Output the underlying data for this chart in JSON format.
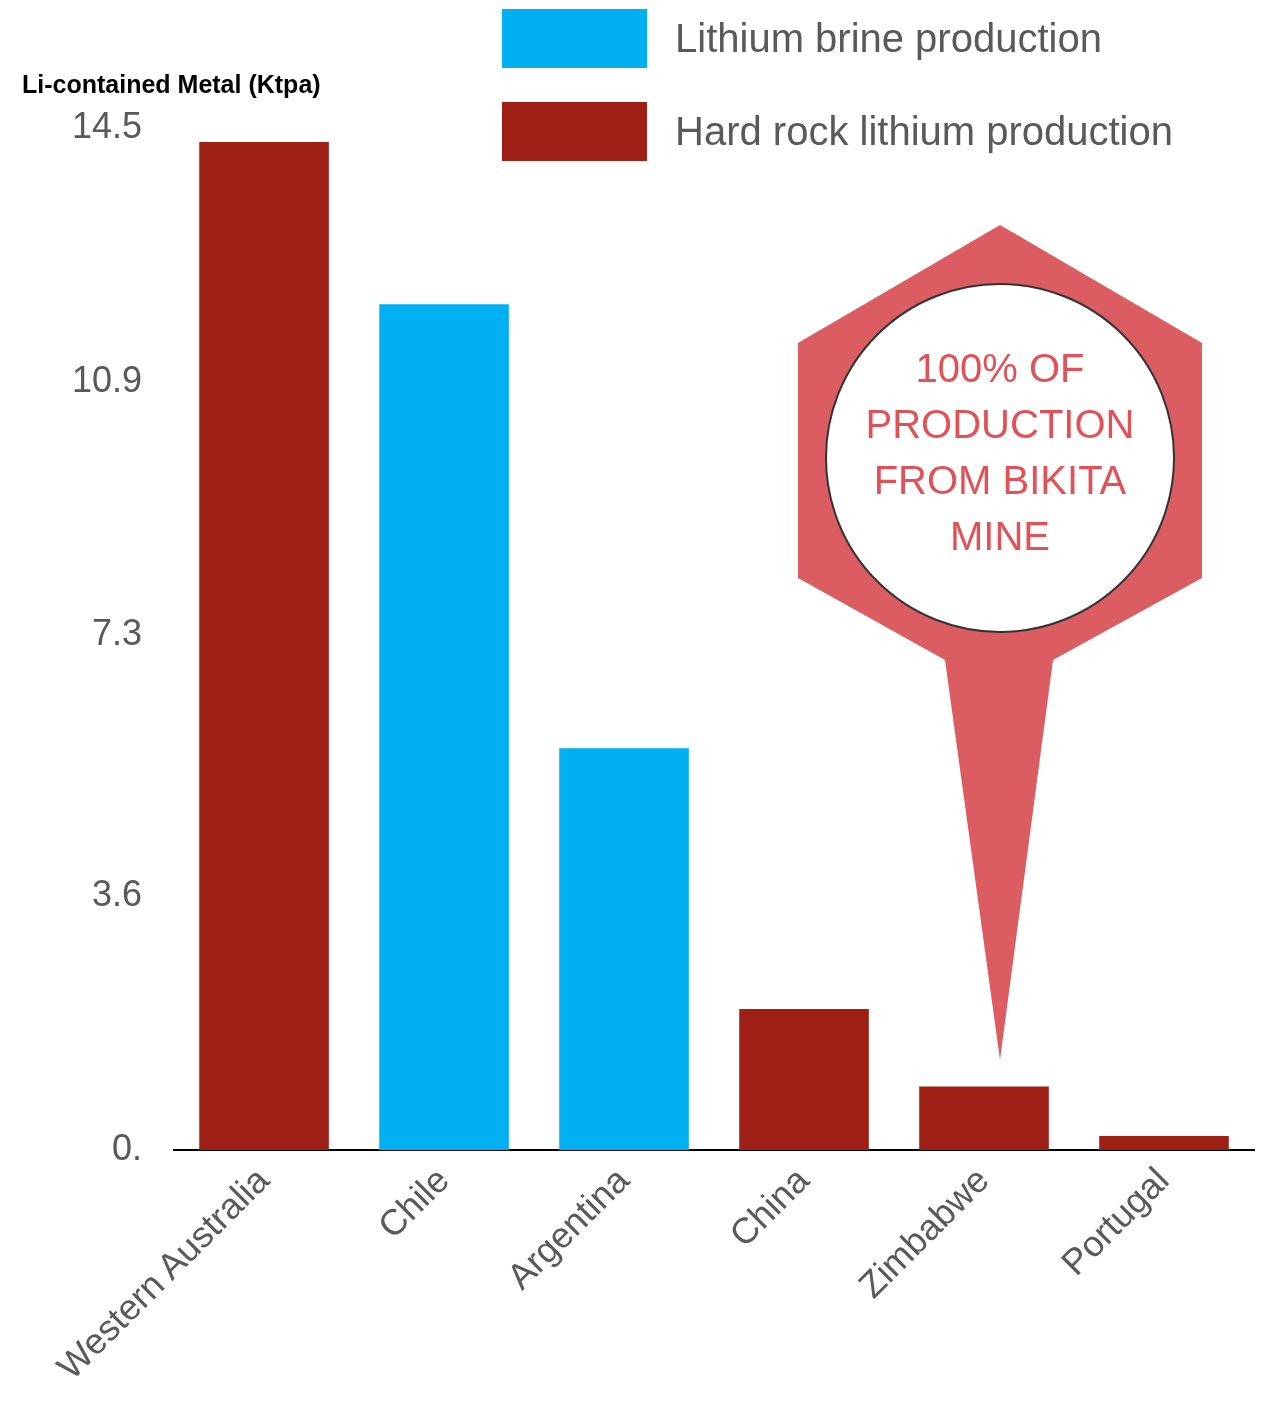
{
  "chart_data": {
    "type": "bar",
    "ylabel": "Li-contained Metal (Ktpa)",
    "categories": [
      "Western Australia",
      "Chile",
      "Argentina",
      "China",
      "Zimbabwe",
      "Portugal"
    ],
    "series": [
      {
        "name": "Lithium brine production",
        "color": "#00b0f0",
        "values": [
          null,
          12.0,
          5.7,
          null,
          null,
          null
        ]
      },
      {
        "name": "Hard rock lithium production",
        "color": "#9e2015",
        "values": [
          14.3,
          null,
          null,
          2.0,
          0.9,
          0.2
        ]
      }
    ],
    "stacked": true,
    "ylim": [
      0,
      14.5
    ],
    "yticks": [
      {
        "value": 0,
        "label": "0."
      },
      3.6,
      7.3,
      10.9,
      14.5
    ],
    "grid": false,
    "legend": "top right",
    "annotations": [
      "100% OF PRODUCTION FROM BIKITA MINE"
    ]
  }
}
